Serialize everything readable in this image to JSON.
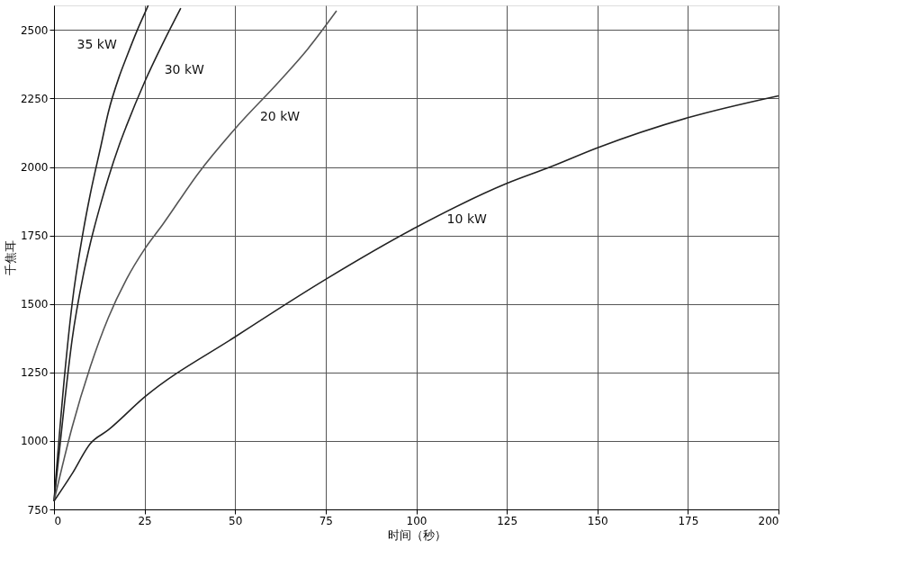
{
  "chart_data": {
    "type": "line",
    "xlabel": "时间（秒）",
    "ylabel": "千焦耳",
    "xlim": [
      0,
      200
    ],
    "ylim": [
      750,
      2590
    ],
    "xticks": [
      0,
      25,
      50,
      75,
      100,
      125,
      150,
      175,
      200
    ],
    "yticks": [
      750,
      1000,
      1250,
      1500,
      1750,
      2000,
      2250,
      2500
    ],
    "grid": true,
    "marker": "none",
    "line_style": "solid",
    "series": [
      {
        "color": "#222222",
        "x": [
          0,
          3,
          5,
          8,
          10,
          13,
          15,
          18,
          20,
          23,
          25,
          26
        ],
        "values": [
          780,
          1250,
          1500,
          1760,
          1900,
          2080,
          2200,
          2330,
          2400,
          2500,
          2560,
          2590
        ]
      },
      {
        "color": "#222222",
        "x": [
          0,
          3,
          5,
          8,
          10,
          13,
          15,
          18,
          20,
          25,
          30,
          35
        ],
        "values": [
          780,
          1150,
          1370,
          1600,
          1720,
          1870,
          1960,
          2080,
          2150,
          2310,
          2450,
          2580
        ]
      },
      {
        "color": "#555555",
        "x": [
          0,
          5,
          10,
          15,
          20,
          25,
          30,
          40,
          50,
          62,
          70,
          78
        ],
        "values": [
          780,
          1050,
          1270,
          1450,
          1590,
          1700,
          1790,
          1980,
          2140,
          2310,
          2430,
          2570
        ]
      },
      {
        "color": "#222222",
        "x": [
          0,
          5,
          10,
          15,
          25,
          50,
          75,
          100,
          125,
          137,
          150,
          175,
          200
        ],
        "values": [
          780,
          880,
          990,
          1040,
          1160,
          1380,
          1590,
          1780,
          1940,
          2000,
          2070,
          2180,
          2260
        ]
      }
    ],
    "annotations": [
      {
        "text": "35 kW",
        "x": 21.3,
        "y": 2444
      },
      {
        "text": "30 kW",
        "x": 26.5,
        "y": 2352
      },
      {
        "text": "20 kW",
        "x": 52.9,
        "y": 2181
      },
      {
        "text": "10 kW",
        "x": 104.5,
        "y": 1809
      }
    ]
  }
}
